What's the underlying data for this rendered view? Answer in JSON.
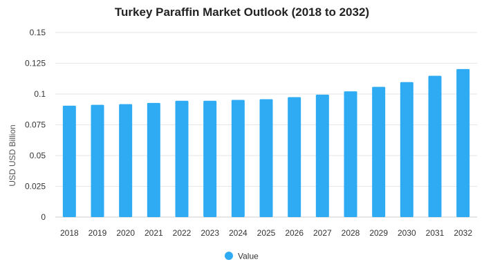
{
  "chart_data": {
    "type": "bar",
    "title": "Turkey Paraffin Market Outlook (2018 to 2032)",
    "xlabel": "",
    "ylabel": "USD USD Billion",
    "categories": [
      "2018",
      "2019",
      "2020",
      "2021",
      "2022",
      "2023",
      "2024",
      "2025",
      "2026",
      "2027",
      "2028",
      "2029",
      "2030",
      "2031",
      "2032"
    ],
    "series": [
      {
        "name": "Value",
        "values": [
          0.0905,
          0.0912,
          0.0918,
          0.0928,
          0.0945,
          0.0945,
          0.0952,
          0.0958,
          0.0975,
          0.0995,
          0.1022,
          0.1058,
          0.1097,
          0.1148,
          0.1203
        ],
        "color": "#2eabf2"
      }
    ],
    "ylim": [
      0,
      0.15
    ],
    "yticks": [
      "0",
      "0.025",
      "0.05",
      "0.075",
      "0.1",
      "0.125",
      "0.15"
    ],
    "grid": true,
    "legend_position": "bottom"
  }
}
